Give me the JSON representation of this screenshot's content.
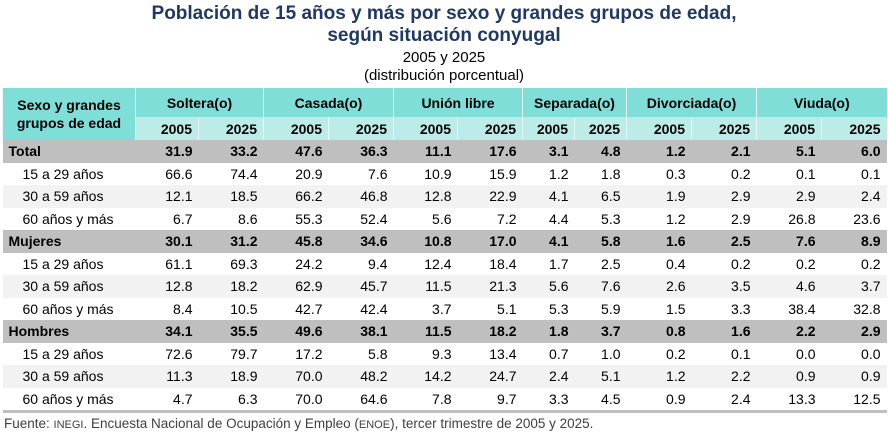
{
  "title": {
    "line1": "Población de 15 años y más por sexo y grandes grupos de edad,",
    "line2": "según situación conyugal",
    "years": "2005 y 2025",
    "unit": "(distribución porcentual)"
  },
  "table": {
    "row_header": "Sexo y grandes grupos de edad",
    "groups": [
      "Soltera(o)",
      "Casada(o)",
      "Unión libre",
      "Separada(o)",
      "Divorciada(o)",
      "Viuda(o)"
    ],
    "years": [
      "2005",
      "2025"
    ],
    "rows": [
      {
        "label": "Total",
        "group": true,
        "values": [
          "31.9",
          "33.2",
          "47.6",
          "36.3",
          "11.1",
          "17.6",
          "3.1",
          "4.8",
          "1.2",
          "2.1",
          "5.1",
          "6.0"
        ]
      },
      {
        "label": "15 a 29 años",
        "values": [
          "66.6",
          "74.4",
          "20.9",
          "7.6",
          "10.9",
          "15.9",
          "1.2",
          "1.8",
          "0.3",
          "0.2",
          "0.1",
          "0.1"
        ]
      },
      {
        "label": "30 a 59 años",
        "values": [
          "12.1",
          "18.5",
          "66.2",
          "46.8",
          "12.8",
          "22.9",
          "4.1",
          "6.5",
          "1.9",
          "2.9",
          "2.9",
          "2.4"
        ]
      },
      {
        "label": "60 años y más",
        "values": [
          "6.7",
          "8.6",
          "55.3",
          "52.4",
          "5.6",
          "7.2",
          "4.4",
          "5.3",
          "1.2",
          "2.9",
          "26.8",
          "23.6"
        ]
      },
      {
        "label": "Mujeres",
        "group": true,
        "values": [
          "30.1",
          "31.2",
          "45.8",
          "34.6",
          "10.8",
          "17.0",
          "4.1",
          "5.8",
          "1.6",
          "2.5",
          "7.6",
          "8.9"
        ]
      },
      {
        "label": "15 a 29 años",
        "values": [
          "61.1",
          "69.3",
          "24.2",
          "9.4",
          "12.4",
          "18.4",
          "1.7",
          "2.5",
          "0.4",
          "0.2",
          "0.2",
          "0.2"
        ]
      },
      {
        "label": "30 a 59 años",
        "values": [
          "12.8",
          "18.2",
          "62.9",
          "45.7",
          "11.5",
          "21.3",
          "5.6",
          "7.6",
          "2.6",
          "3.5",
          "4.6",
          "3.7"
        ]
      },
      {
        "label": "60 años y más",
        "values": [
          "8.4",
          "10.5",
          "42.7",
          "42.4",
          "3.7",
          "5.1",
          "5.3",
          "5.9",
          "1.5",
          "3.3",
          "38.4",
          "32.8"
        ]
      },
      {
        "label": "Hombres",
        "group": true,
        "values": [
          "34.1",
          "35.5",
          "49.6",
          "38.1",
          "11.5",
          "18.2",
          "1.8",
          "3.7",
          "0.8",
          "1.6",
          "2.2",
          "2.9"
        ]
      },
      {
        "label": "15 a 29 años",
        "values": [
          "72.6",
          "79.7",
          "17.2",
          "5.8",
          "9.3",
          "13.4",
          "0.7",
          "1.0",
          "0.2",
          "0.1",
          "0.0",
          "0.0"
        ]
      },
      {
        "label": "30 a 59 años",
        "values": [
          "11.3",
          "18.9",
          "70.0",
          "48.2",
          "14.2",
          "24.7",
          "2.4",
          "5.1",
          "1.2",
          "2.2",
          "0.9",
          "0.9"
        ]
      },
      {
        "label": "60 años y más",
        "values": [
          "4.7",
          "6.3",
          "70.0",
          "64.6",
          "7.8",
          "9.7",
          "3.3",
          "4.5",
          "0.9",
          "2.4",
          "13.3",
          "12.5"
        ]
      }
    ]
  },
  "footer": {
    "prefix": "Fuente: ",
    "inegi": "INEGI",
    "mid": ". Encuesta Nacional de Ocupación y Empleo (",
    "enoe": "ENOE",
    "suffix": "), tercer trimestre de 2005 y 2025."
  }
}
